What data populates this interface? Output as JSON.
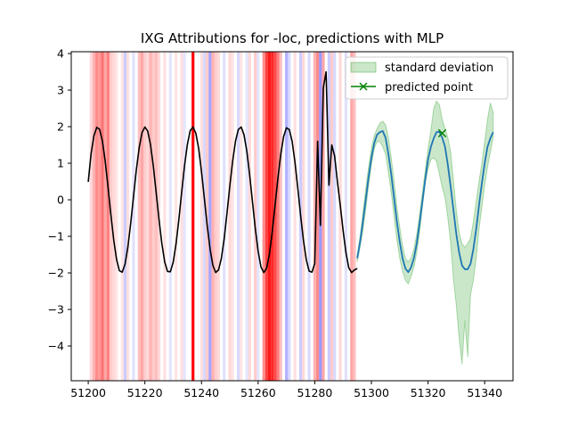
{
  "chart_data": {
    "type": "line",
    "title": "IXG Attributions for -loc, predictions with MLP",
    "xlabel": "",
    "ylabel": "",
    "xlim": [
      51194,
      51350
    ],
    "ylim": [
      -4.95,
      4.05
    ],
    "x_ticks": [
      51200,
      51220,
      51240,
      51260,
      51280,
      51300,
      51320,
      51340
    ],
    "y_ticks": [
      -4,
      -3,
      -2,
      -1,
      0,
      1,
      2,
      3,
      4
    ],
    "grid": false,
    "legend": {
      "placement": "top-right",
      "entries": [
        {
          "label": "standard deviation",
          "kind": "fill",
          "color": "#2ca02c"
        },
        {
          "label": "predicted point",
          "kind": "marker-x",
          "color": "#008000"
        }
      ]
    },
    "attribution_bands": [
      {
        "x": 51201,
        "color": "#ff0000",
        "alpha": 0.15
      },
      {
        "x": 51202,
        "color": "#ff0000",
        "alpha": 0.3
      },
      {
        "x": 51203,
        "color": "#ff0000",
        "alpha": 0.45
      },
      {
        "x": 51204,
        "color": "#ff0000",
        "alpha": 0.4
      },
      {
        "x": 51205,
        "color": "#ff0000",
        "alpha": 0.55
      },
      {
        "x": 51206,
        "color": "#ff0000",
        "alpha": 0.35
      },
      {
        "x": 51207,
        "color": "#ff0000",
        "alpha": 0.5
      },
      {
        "x": 51208,
        "color": "#ff0000",
        "alpha": 0.2
      },
      {
        "x": 51209,
        "color": "#ff0000",
        "alpha": 0.15
      },
      {
        "x": 51210,
        "color": "#ff0000",
        "alpha": 0.1
      },
      {
        "x": 51212,
        "color": "#ff0000",
        "alpha": 0.1
      },
      {
        "x": 51213,
        "color": "#0000ff",
        "alpha": 0.2
      },
      {
        "x": 51214,
        "color": "#ff0000",
        "alpha": 0.12
      },
      {
        "x": 51216,
        "color": "#0000ff",
        "alpha": 0.12
      },
      {
        "x": 51218,
        "color": "#ff0000",
        "alpha": 0.25
      },
      {
        "x": 51219,
        "color": "#ff0000",
        "alpha": 0.35
      },
      {
        "x": 51220,
        "color": "#ff0000",
        "alpha": 0.2
      },
      {
        "x": 51221,
        "color": "#ff0000",
        "alpha": 0.15
      },
      {
        "x": 51222,
        "color": "#ff0000",
        "alpha": 0.3
      },
      {
        "x": 51223,
        "color": "#ff0000",
        "alpha": 0.2
      },
      {
        "x": 51224,
        "color": "#ff0000",
        "alpha": 0.25
      },
      {
        "x": 51225,
        "color": "#ff0000",
        "alpha": 0.15
      },
      {
        "x": 51227,
        "color": "#ff0000",
        "alpha": 0.12
      },
      {
        "x": 51229,
        "color": "#0000ff",
        "alpha": 0.1
      },
      {
        "x": 51231,
        "color": "#ff0000",
        "alpha": 0.1
      },
      {
        "x": 51233,
        "color": "#ff0000",
        "alpha": 0.12
      },
      {
        "x": 51234,
        "color": "#0000ff",
        "alpha": 0.1
      },
      {
        "x": 51237,
        "color": "#ff0000",
        "alpha": 1.0
      },
      {
        "x": 51240,
        "color": "#ff0000",
        "alpha": 0.12
      },
      {
        "x": 51241,
        "color": "#0000ff",
        "alpha": 0.15
      },
      {
        "x": 51242,
        "color": "#ff0000",
        "alpha": 0.2
      },
      {
        "x": 51243,
        "color": "#0000ff",
        "alpha": 0.35
      },
      {
        "x": 51244,
        "color": "#ff0000",
        "alpha": 0.3
      },
      {
        "x": 51245,
        "color": "#ff0000",
        "alpha": 0.2
      },
      {
        "x": 51246,
        "color": "#ff0000",
        "alpha": 0.15
      },
      {
        "x": 51248,
        "color": "#0000ff",
        "alpha": 0.12
      },
      {
        "x": 51250,
        "color": "#ff0000",
        "alpha": 0.15
      },
      {
        "x": 51251,
        "color": "#ff0000",
        "alpha": 0.1
      },
      {
        "x": 51253,
        "color": "#0000ff",
        "alpha": 0.15
      },
      {
        "x": 51254,
        "color": "#ff0000",
        "alpha": 0.1
      },
      {
        "x": 51256,
        "color": "#0000ff",
        "alpha": 0.1
      },
      {
        "x": 51257,
        "color": "#ff0000",
        "alpha": 0.15
      },
      {
        "x": 51259,
        "color": "#ff0000",
        "alpha": 0.2
      },
      {
        "x": 51260,
        "color": "#0000ff",
        "alpha": 0.1
      },
      {
        "x": 51262,
        "color": "#ff0000",
        "alpha": 0.45
      },
      {
        "x": 51263,
        "color": "#ff0000",
        "alpha": 0.75
      },
      {
        "x": 51264,
        "color": "#ff0000",
        "alpha": 0.9
      },
      {
        "x": 51265,
        "color": "#ff0000",
        "alpha": 0.85
      },
      {
        "x": 51266,
        "color": "#ff0000",
        "alpha": 0.7
      },
      {
        "x": 51267,
        "color": "#ff0000",
        "alpha": 0.5
      },
      {
        "x": 51268,
        "color": "#ff0000",
        "alpha": 0.25
      },
      {
        "x": 51270,
        "color": "#0000ff",
        "alpha": 0.3
      },
      {
        "x": 51271,
        "color": "#0000ff",
        "alpha": 0.15
      },
      {
        "x": 51273,
        "color": "#ff0000",
        "alpha": 0.12
      },
      {
        "x": 51275,
        "color": "#0000ff",
        "alpha": 0.2
      },
      {
        "x": 51276,
        "color": "#ff0000",
        "alpha": 0.15
      },
      {
        "x": 51278,
        "color": "#0000ff",
        "alpha": 0.15
      },
      {
        "x": 51280,
        "color": "#ff0000",
        "alpha": 0.3
      },
      {
        "x": 51281,
        "color": "#ff0000",
        "alpha": 0.45
      },
      {
        "x": 51282,
        "color": "#0000ff",
        "alpha": 0.4
      },
      {
        "x": 51283,
        "color": "#ff0000",
        "alpha": 0.35
      },
      {
        "x": 51285,
        "color": "#0000ff",
        "alpha": 0.2
      },
      {
        "x": 51286,
        "color": "#ff0000",
        "alpha": 0.2
      },
      {
        "x": 51287,
        "color": "#0000ff",
        "alpha": 0.15
      },
      {
        "x": 51289,
        "color": "#ff0000",
        "alpha": 0.15
      },
      {
        "x": 51291,
        "color": "#0000ff",
        "alpha": 0.12
      },
      {
        "x": 51293,
        "color": "#ff0000",
        "alpha": 0.35
      },
      {
        "x": 51294,
        "color": "#ff0000",
        "alpha": 0.25
      }
    ],
    "history_series": {
      "color": "#000000",
      "x": [
        51200,
        51201,
        51202,
        51203,
        51204,
        51205,
        51206,
        51207,
        51208,
        51209,
        51210,
        51211,
        51212,
        51213,
        51214,
        51215,
        51216,
        51217,
        51218,
        51219,
        51220,
        51221,
        51222,
        51223,
        51224,
        51225,
        51226,
        51227,
        51228,
        51229,
        51230,
        51231,
        51232,
        51233,
        51234,
        51235,
        51236,
        51237,
        51238,
        51239,
        51240,
        51241,
        51242,
        51243,
        51244,
        51245,
        51246,
        51247,
        51248,
        51249,
        51250,
        51251,
        51252,
        51253,
        51254,
        51255,
        51256,
        51257,
        51258,
        51259,
        51260,
        51261,
        51262,
        51263,
        51264,
        51265,
        51266,
        51267,
        51268,
        51269,
        51270,
        51271,
        51272,
        51273,
        51274,
        51275,
        51276,
        51277,
        51278,
        51279,
        51280,
        51281,
        51282,
        51283,
        51284,
        51285,
        51286,
        51287,
        51288,
        51289,
        51290,
        51291,
        51292,
        51293,
        51294,
        51295
      ],
      "y": [
        0.49,
        1.26,
        1.75,
        1.98,
        1.93,
        1.61,
        1.05,
        0.34,
        -0.41,
        -1.1,
        -1.63,
        -1.94,
        -1.98,
        -1.76,
        -1.29,
        -0.64,
        0.1,
        0.83,
        1.43,
        1.84,
        1.99,
        1.88,
        1.5,
        0.91,
        0.19,
        -0.55,
        -1.2,
        -1.7,
        -1.96,
        -1.97,
        -1.71,
        -1.21,
        -0.54,
        0.21,
        0.93,
        1.51,
        1.89,
        1.99,
        1.82,
        1.4,
        0.77,
        0.04,
        -0.7,
        -1.33,
        -1.79,
        -1.99,
        -1.92,
        -1.61,
        -1.07,
        -0.37,
        0.38,
        1.06,
        1.6,
        1.92,
        1.99,
        1.78,
        1.33,
        0.68,
        -0.06,
        -0.79,
        -1.41,
        -1.84,
        -1.99,
        -1.87,
        -1.48,
        -0.86,
        -0.13,
        0.6,
        1.25,
        1.73,
        1.97,
        1.92,
        1.6,
        1.03,
        0.32,
        -0.43,
        -1.11,
        -1.64,
        -1.95,
        -1.98,
        -1.74,
        1.6,
        -0.7,
        3.05,
        3.5,
        0.4,
        1.5,
        1.2,
        0.49,
        -0.15,
        -0.84,
        -1.44,
        -1.86,
        -1.99,
        -1.92,
        -1.88
      ]
    },
    "prediction_series": {
      "color": "#1f77b4",
      "x": [
        51295,
        51296,
        51297,
        51298,
        51299,
        51300,
        51301,
        51302,
        51303,
        51304,
        51305,
        51306,
        51307,
        51308,
        51309,
        51310,
        51311,
        51312,
        51313,
        51314,
        51315,
        51316,
        51317,
        51318,
        51319,
        51320,
        51321,
        51322,
        51323,
        51324,
        51325,
        51326,
        51327,
        51328,
        51329,
        51330,
        51331,
        51332,
        51333,
        51334,
        51335,
        51336,
        51337,
        51338,
        51339,
        51340,
        51341,
        51342,
        51343
      ],
      "y": [
        -1.6,
        -1.15,
        -0.6,
        0.0,
        0.62,
        1.15,
        1.55,
        1.78,
        1.85,
        1.88,
        1.7,
        1.25,
        0.7,
        0.05,
        -0.6,
        -1.15,
        -1.6,
        -1.88,
        -1.98,
        -1.85,
        -1.6,
        -1.2,
        -0.65,
        -0.05,
        0.55,
        1.1,
        1.45,
        1.68,
        1.85,
        1.86,
        1.7,
        1.45,
        0.95,
        0.35,
        -0.3,
        -0.95,
        -1.45,
        -1.8,
        -1.9,
        -1.9,
        -1.75,
        -1.35,
        -0.8,
        -0.15,
        0.45,
        1.0,
        1.45,
        1.68,
        1.85
      ],
      "std_lower": [
        -1.7,
        -1.3,
        -0.85,
        -0.25,
        0.38,
        0.95,
        1.4,
        1.6,
        1.58,
        1.45,
        1.25,
        0.75,
        0.2,
        -0.45,
        -1.1,
        -1.6,
        -1.95,
        -2.2,
        -2.3,
        -2.1,
        -1.85,
        -1.45,
        -0.9,
        -0.2,
        0.45,
        0.85,
        1.1,
        1.15,
        1.05,
        0.7,
        0.35,
        0.05,
        -0.5,
        -1.2,
        -2.2,
        -2.9,
        -3.8,
        -4.5,
        -3.3,
        -4.3,
        -2.6,
        -2.2,
        -1.6,
        -0.8,
        -0.2,
        0.4,
        0.9,
        1.3,
        1.7
      ],
      "std_upper": [
        -1.5,
        -1.0,
        -0.35,
        0.3,
        0.9,
        1.4,
        1.75,
        1.95,
        2.1,
        2.15,
        2.05,
        1.7,
        1.15,
        0.5,
        -0.2,
        -0.75,
        -1.25,
        -1.6,
        -1.7,
        -1.6,
        -1.35,
        -0.95,
        -0.4,
        0.2,
        0.8,
        1.4,
        1.9,
        2.5,
        2.7,
        2.6,
        2.2,
        1.95,
        1.7,
        1.3,
        0.5,
        -0.3,
        -0.9,
        -1.2,
        -1.3,
        -1.2,
        -1.05,
        -0.6,
        -0.05,
        0.5,
        1.0,
        1.6,
        2.2,
        2.65,
        2.4
      ]
    },
    "predicted_point": {
      "x": 51325,
      "y": 1.82,
      "marker": "x",
      "color": "#008000"
    }
  }
}
